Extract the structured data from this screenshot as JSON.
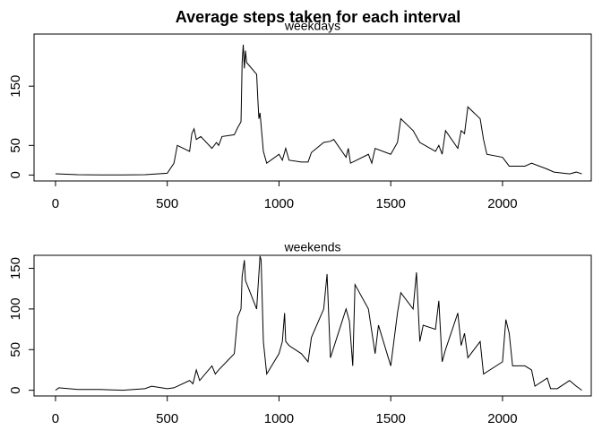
{
  "title": "Average steps taken for each interval",
  "chart_data": [
    {
      "type": "line",
      "title": "weekdays",
      "color": "#000000",
      "xlim": [
        -96,
        2397
      ],
      "ylim": [
        -10,
        238
      ],
      "xticks": [
        0,
        500,
        1000,
        1500,
        2000
      ],
      "yticks": [
        0,
        50,
        150
      ],
      "x": [
        0,
        100,
        200,
        300,
        400,
        500,
        530,
        545,
        600,
        610,
        620,
        630,
        650,
        700,
        720,
        730,
        745,
        800,
        815,
        830,
        835,
        840,
        845,
        850,
        855,
        900,
        905,
        910,
        915,
        930,
        945,
        1000,
        1015,
        1030,
        1045,
        1100,
        1130,
        1145,
        1200,
        1230,
        1245,
        1300,
        1310,
        1320,
        1400,
        1415,
        1430,
        1500,
        1530,
        1545,
        1600,
        1630,
        1700,
        1715,
        1730,
        1745,
        1800,
        1815,
        1830,
        1845,
        1900,
        1915,
        1930,
        2000,
        2030,
        2100,
        2130,
        2200,
        2230,
        2300,
        2330,
        2355
      ],
      "values": [
        2,
        0.5,
        0.3,
        0.2,
        0.5,
        3,
        20,
        50,
        40,
        70,
        78,
        60,
        65,
        45,
        55,
        50,
        65,
        68,
        80,
        90,
        190,
        220,
        180,
        210,
        190,
        170,
        130,
        95,
        105,
        40,
        20,
        35,
        25,
        45,
        25,
        22,
        22,
        38,
        55,
        57,
        60,
        30,
        45,
        20,
        35,
        20,
        45,
        35,
        55,
        95,
        75,
        55,
        40,
        50,
        35,
        75,
        45,
        75,
        70,
        115,
        95,
        60,
        35,
        30,
        15,
        15,
        20,
        10,
        5,
        2,
        5,
        2
      ]
    },
    {
      "type": "line",
      "title": "weekends",
      "color": "#000000",
      "xlim": [
        -96,
        2397
      ],
      "ylim": [
        -7,
        166
      ],
      "xticks": [
        0,
        500,
        1000,
        1500,
        2000
      ],
      "yticks": [
        0,
        50,
        100,
        150
      ],
      "x": [
        0,
        15,
        100,
        200,
        300,
        400,
        430,
        500,
        530,
        600,
        615,
        630,
        645,
        700,
        715,
        730,
        800,
        815,
        830,
        835,
        845,
        850,
        900,
        915,
        920,
        930,
        945,
        1000,
        1015,
        1025,
        1030,
        1045,
        1100,
        1130,
        1145,
        1200,
        1215,
        1230,
        1300,
        1315,
        1330,
        1340,
        1400,
        1430,
        1445,
        1500,
        1530,
        1545,
        1600,
        1615,
        1630,
        1645,
        1700,
        1715,
        1730,
        1745,
        1800,
        1815,
        1830,
        1845,
        1900,
        1915,
        2000,
        2015,
        2030,
        2045,
        2100,
        2130,
        2145,
        2200,
        2215,
        2245,
        2300,
        2330,
        2355
      ],
      "values": [
        0,
        3,
        1,
        1,
        0,
        2,
        5,
        2,
        3,
        12,
        8,
        25,
        12,
        30,
        20,
        25,
        45,
        90,
        100,
        140,
        160,
        135,
        100,
        165,
        160,
        60,
        20,
        45,
        60,
        95,
        60,
        55,
        45,
        35,
        65,
        100,
        143,
        40,
        100,
        85,
        30,
        130,
        100,
        45,
        80,
        30,
        95,
        120,
        100,
        145,
        60,
        80,
        75,
        110,
        35,
        50,
        95,
        55,
        70,
        40,
        60,
        20,
        35,
        87,
        70,
        30,
        30,
        25,
        5,
        15,
        2,
        2,
        12,
        5,
        0
      ]
    }
  ]
}
